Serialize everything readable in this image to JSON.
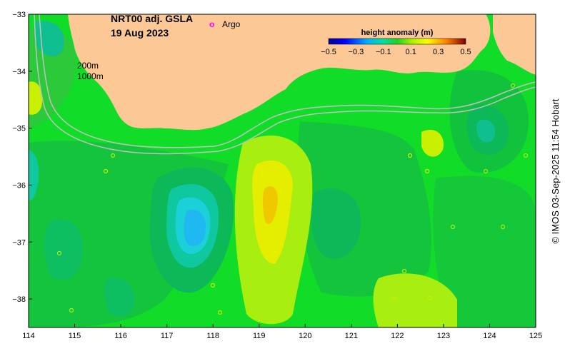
{
  "map": {
    "title_line1": "NRT00 adj. GSLA",
    "title_line2": "19 Aug 2023",
    "legend_marker": "o",
    "legend_label": "Argo",
    "isobath_200": "200m",
    "isobath_1000": "1000m",
    "credit": "© IMOS 03-Sep-2025 11:54 Hobart"
  },
  "colorbar": {
    "title": "height anomaly (m)",
    "ticks": [
      "−0.5",
      "−0.3",
      "−0.1",
      "0.1",
      "0.3",
      "0.5"
    ]
  },
  "chart_data": {
    "type": "heatmap",
    "variable": "height anomaly (m)",
    "xlim": [
      114,
      125
    ],
    "ylim": [
      -38.5,
      -33
    ],
    "x_ticks": [
      "114",
      "115",
      "116",
      "117",
      "118",
      "119",
      "120",
      "121",
      "122",
      "123",
      "124",
      "125"
    ],
    "y_ticks": [
      "−33",
      "−34",
      "−35",
      "−36",
      "−37",
      "−38"
    ],
    "color_range": [
      -0.5,
      0.5
    ],
    "colors": {
      "land": "#fbc896",
      "argo_marker": "#ff00ff",
      "isobath": "#c0c0c0"
    }
  }
}
